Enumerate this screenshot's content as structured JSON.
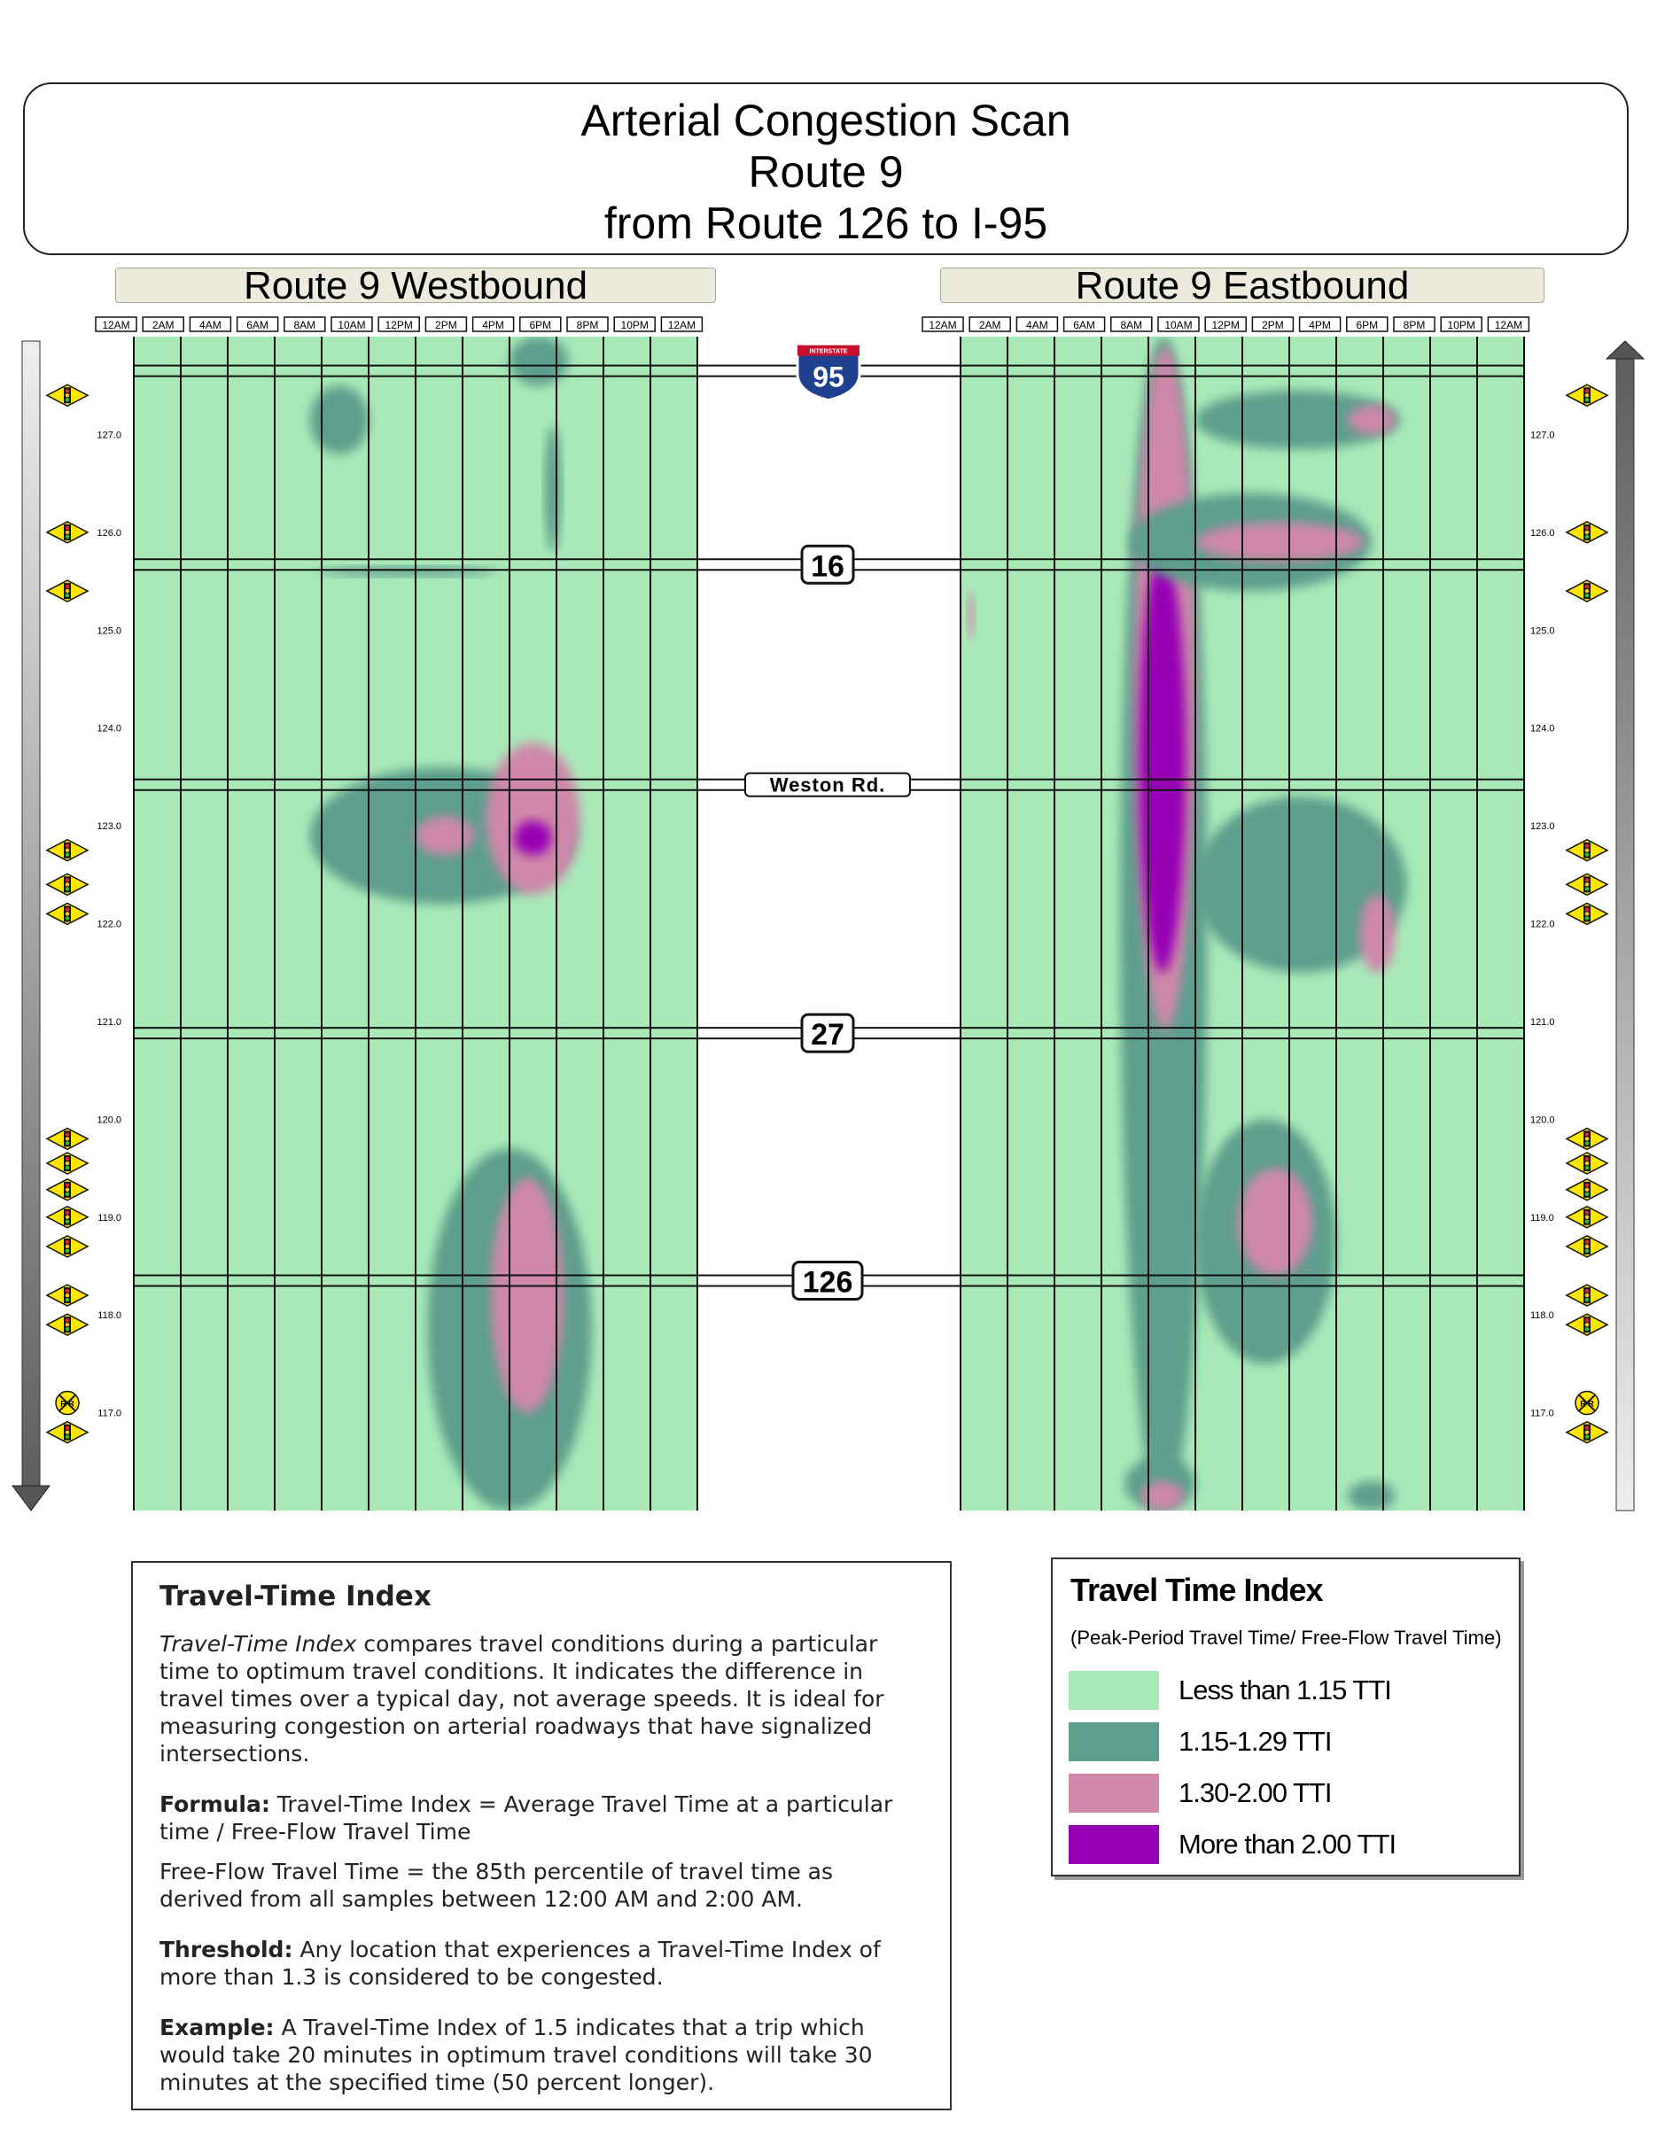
{
  "header": {
    "title_line1": "Arterial Congestion Scan",
    "title_line2": "Route 9",
    "title_line3": "from Route 126 to I-95"
  },
  "panels": {
    "westbound_label": "Route 9 Westbound",
    "eastbound_label": "Route 9 Eastbound"
  },
  "colors": {
    "lt_115": "#a9e9b8",
    "r115_129": "#5d9e8c",
    "r130_200": "#cf87aa",
    "gt_200": "#9600b4"
  },
  "chart_data": {
    "type": "heatmap",
    "x_label_ticks": [
      "12AM",
      "2AM",
      "4AM",
      "6AM",
      "8AM",
      "10AM",
      "12PM",
      "2PM",
      "4PM",
      "6PM",
      "8PM",
      "10PM",
      "12AM"
    ],
    "x_range_hours": [
      0,
      24
    ],
    "y_ticks": [
      "127.0",
      "126.0",
      "125.0",
      "124.0",
      "123.0",
      "122.0",
      "121.0",
      "120.0",
      "119.0",
      "118.0",
      "117.0"
    ],
    "y_range_milepost": [
      116.0,
      128.0
    ],
    "cross_streets": [
      {
        "label": "95",
        "shield_text": "INTERSTATE",
        "type": "interstate",
        "milepost": 127.65
      },
      {
        "label": "16",
        "type": "route",
        "milepost": 125.67
      },
      {
        "label": "Weston Rd.",
        "type": "road",
        "milepost": 123.42
      },
      {
        "label": "27",
        "type": "route",
        "milepost": 120.88
      },
      {
        "label": "126",
        "type": "route",
        "milepost": 118.35
      }
    ],
    "signals_mileposts": [
      127.4,
      126.0,
      125.4,
      122.75,
      122.4,
      122.1,
      119.8,
      119.55,
      119.28,
      119.0,
      118.7,
      118.2,
      117.9,
      116.8
    ],
    "railroad_milepost": 117.1,
    "railroad_label": "R R",
    "westbound_hotspots": [
      {
        "t0": 16.0,
        "t1": 18.5,
        "m0": 127.5,
        "m1": 128.0,
        "level": 1
      },
      {
        "t0": 7.5,
        "t1": 10.0,
        "m0": 126.8,
        "m1": 127.5,
        "level": 1
      },
      {
        "t0": 17.5,
        "t1": 18.2,
        "m0": 125.8,
        "m1": 127.1,
        "level": 1
      },
      {
        "t0": 7.8,
        "t1": 15.5,
        "m0": 125.55,
        "m1": 125.65,
        "level": 1
      },
      {
        "t0": 7.5,
        "t1": 18.8,
        "m0": 122.2,
        "m1": 123.6,
        "level": 1
      },
      {
        "t0": 15.0,
        "t1": 19.0,
        "m0": 122.3,
        "m1": 123.85,
        "level": 2
      },
      {
        "t0": 12.0,
        "t1": 14.5,
        "m0": 122.7,
        "m1": 123.1,
        "level": 2
      },
      {
        "t0": 16.2,
        "t1": 17.8,
        "m0": 122.7,
        "m1": 123.05,
        "level": 3
      },
      {
        "t0": 12.5,
        "t1": 19.5,
        "m0": 116.0,
        "m1": 119.7,
        "level": 1
      },
      {
        "t0": 15.2,
        "t1": 18.3,
        "m0": 117.0,
        "m1": 119.4,
        "level": 2
      }
    ],
    "eastbound_hotspots": [
      {
        "t0": 6.8,
        "t1": 10.5,
        "m0": 116.0,
        "m1": 128.0,
        "level": 1
      },
      {
        "t0": 7.4,
        "t1": 10.0,
        "m0": 120.9,
        "m1": 127.9,
        "level": 2
      },
      {
        "t0": 7.6,
        "t1": 9.6,
        "m0": 121.5,
        "m1": 125.8,
        "level": 3
      },
      {
        "t0": 10.0,
        "t1": 18.7,
        "m0": 126.85,
        "m1": 127.45,
        "level": 1
      },
      {
        "t0": 16.5,
        "t1": 18.5,
        "m0": 127.0,
        "m1": 127.3,
        "level": 2
      },
      {
        "t0": 7.2,
        "t1": 17.5,
        "m0": 125.4,
        "m1": 126.4,
        "level": 1
      },
      {
        "t0": 10.0,
        "t1": 17.2,
        "m0": 125.7,
        "m1": 126.1,
        "level": 2
      },
      {
        "t0": 10.0,
        "t1": 19.0,
        "m0": 121.5,
        "m1": 123.3,
        "level": 1
      },
      {
        "t0": 17.0,
        "t1": 18.5,
        "m0": 121.5,
        "m1": 122.3,
        "level": 2
      },
      {
        "t0": 10.0,
        "t1": 16.0,
        "m0": 117.5,
        "m1": 120.0,
        "level": 1
      },
      {
        "t0": 11.8,
        "t1": 15.0,
        "m0": 118.4,
        "m1": 119.5,
        "level": 2
      },
      {
        "t0": 7.0,
        "t1": 10.0,
        "m0": 116.0,
        "m1": 116.55,
        "level": 1
      },
      {
        "t0": 7.7,
        "t1": 9.5,
        "m0": 116.0,
        "m1": 116.3,
        "level": 2
      },
      {
        "t0": 16.5,
        "t1": 18.5,
        "m0": 116.0,
        "m1": 116.3,
        "level": 1
      },
      {
        "t0": 0.3,
        "t1": 0.6,
        "m0": 124.9,
        "m1": 125.4,
        "level": 2
      }
    ]
  },
  "tti_panel": {
    "heading": "Travel-Time Index",
    "intro_italic": "Travel-Time Index",
    "intro_rest": " compares travel conditions during a particular time to optimum travel conditions. It indicates the difference in travel times over a typical day, not average speeds. It is ideal for measuring congestion on arterial roadways that have signalized intersections.",
    "formula_label": "Formula:",
    "formula_text": " Travel-Time Index = Average Travel Time at a particular time / Free-Flow Travel Time",
    "freeflow_text": "Free-Flow Travel Time = the 85th percentile of travel time as derived from all samples between 12:00 AM and 2:00 AM.",
    "threshold_label": "Threshold:",
    "threshold_text": " Any location that experiences a Travel-Time Index of more than 1.3 is considered to be congested.",
    "example_label": "Example:",
    "example_text": " A Travel-Time Index of 1.5 indicates that a trip which would take 20 minutes in optimum travel conditions will take 30 minutes at the specified time (50 percent longer)."
  },
  "legend": {
    "title": "Travel Time Index",
    "subtitle": "(Peak-Period Travel Time/ Free-Flow Travel Time)",
    "items": [
      {
        "label": "Less than 1.15 TTI",
        "color": "#a9e9b8"
      },
      {
        "label": "1.15-1.29 TTI",
        "color": "#5d9e8c"
      },
      {
        "label": "1.30-2.00 TTI",
        "color": "#cf87aa"
      },
      {
        "label": "More than 2.00 TTI",
        "color": "#9600b4"
      }
    ]
  }
}
